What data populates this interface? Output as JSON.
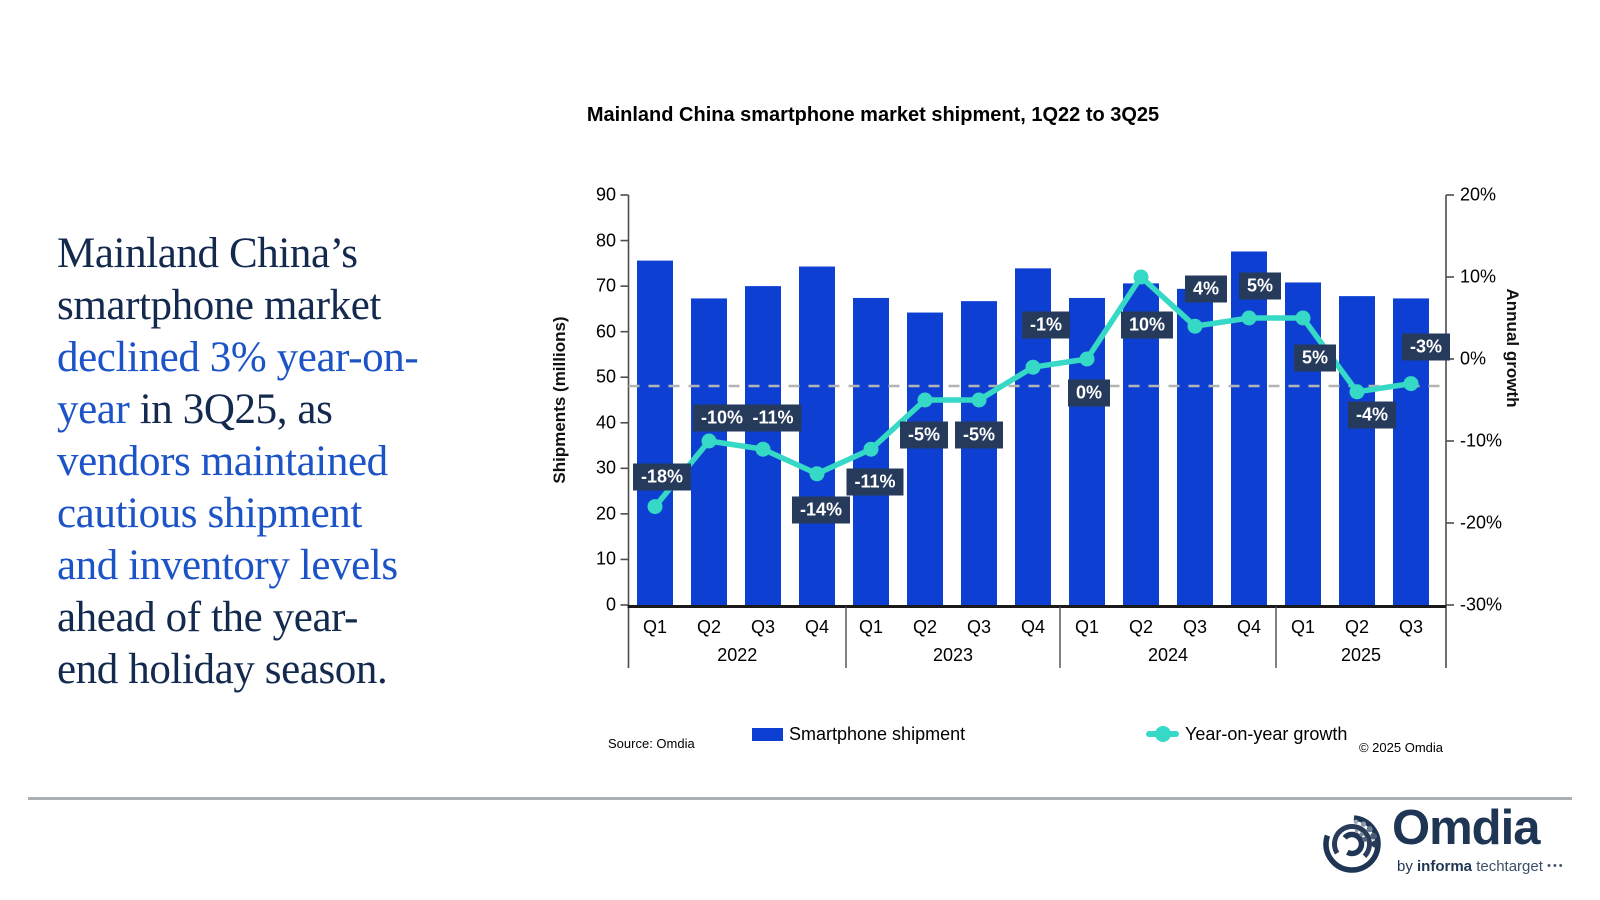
{
  "headline": {
    "lines": [
      [
        {
          "text": "Mainland China’s",
          "c": "navy"
        }
      ],
      [
        {
          "text": "smartphone market",
          "c": "navy"
        }
      ],
      [
        {
          "text": "declined 3% year-on-",
          "c": "blue"
        }
      ],
      [
        {
          "text": "year",
          "c": "blue"
        },
        {
          "text": " in 3Q25, as",
          "c": "navy"
        }
      ],
      [
        {
          "text": "vendors maintained",
          "c": "blue"
        }
      ],
      [
        {
          "text": "cautious shipment",
          "c": "blue"
        }
      ],
      [
        {
          "text": "and inventory levels",
          "c": "blue"
        }
      ],
      [
        {
          "text": "ahead of the year-",
          "c": "navy"
        }
      ],
      [
        {
          "text": "end holiday season.",
          "c": "navy"
        }
      ]
    ],
    "navy_color": "#13294e",
    "blue_color": "#1c53c6"
  },
  "chart_data": {
    "type": "bar+line",
    "title": "Mainland China smartphone market shipment, 1Q22 to 3Q25",
    "categories": [
      "Q1",
      "Q2",
      "Q3",
      "Q4",
      "Q1",
      "Q2",
      "Q3",
      "Q4",
      "Q1",
      "Q2",
      "Q3",
      "Q4",
      "Q1",
      "Q2",
      "Q3"
    ],
    "year_groups": [
      {
        "label": "2022",
        "count": 4
      },
      {
        "label": "2023",
        "count": 4
      },
      {
        "label": "2024",
        "count": 4
      },
      {
        "label": "2025",
        "count": 3
      }
    ],
    "series": [
      {
        "name": "Smartphone shipment",
        "type": "bar",
        "axis": "left",
        "color": "#0d40d2",
        "values": [
          75.6,
          67.3,
          70.0,
          74.3,
          67.4,
          64.2,
          66.7,
          73.9,
          67.4,
          70.6,
          69.4,
          77.6,
          70.8,
          67.8,
          67.3
        ]
      },
      {
        "name": "Year-on-year growth",
        "type": "line",
        "axis": "right",
        "color": "#35d9c6",
        "values": [
          -18,
          -10,
          -11,
          -14,
          -11,
          -5,
          -5,
          -1,
          0,
          10,
          4,
          5,
          5,
          -4,
          -3
        ],
        "labels": [
          "-18%",
          "-10%",
          "-11%",
          "-14%",
          "-11%",
          "-5%",
          "-5%",
          "-1%",
          "0%",
          "10%",
          "4%",
          "5%",
          "5%",
          "-4%",
          "-3%"
        ]
      }
    ],
    "y_left": {
      "label": "Shipments (millions)",
      "min": 0,
      "max": 90,
      "step": 10
    },
    "y_right": {
      "label": "Annual growth",
      "min": -30,
      "max": 20,
      "step": 10,
      "tick_suffix": "%"
    },
    "reference_line": {
      "axis": "right",
      "value": -3.3,
      "style": "dashed",
      "color": "#b3b3b3"
    },
    "label_box_color": "#263a5b",
    "grid": false,
    "legend_position": "bottom"
  },
  "legend": {
    "items": [
      {
        "label": "Smartphone shipment",
        "swatch": "bar"
      },
      {
        "label": "Year-on-year growth",
        "swatch": "line"
      }
    ]
  },
  "footer": {
    "source": "Source: Omdia",
    "copyright": "© 2025 Omdia"
  },
  "logo": {
    "wordmark": "Omdia",
    "byline": [
      {
        "text": "by "
      },
      {
        "text": "informa"
      },
      {
        "text": " techtarget"
      }
    ],
    "dots": "•••"
  }
}
